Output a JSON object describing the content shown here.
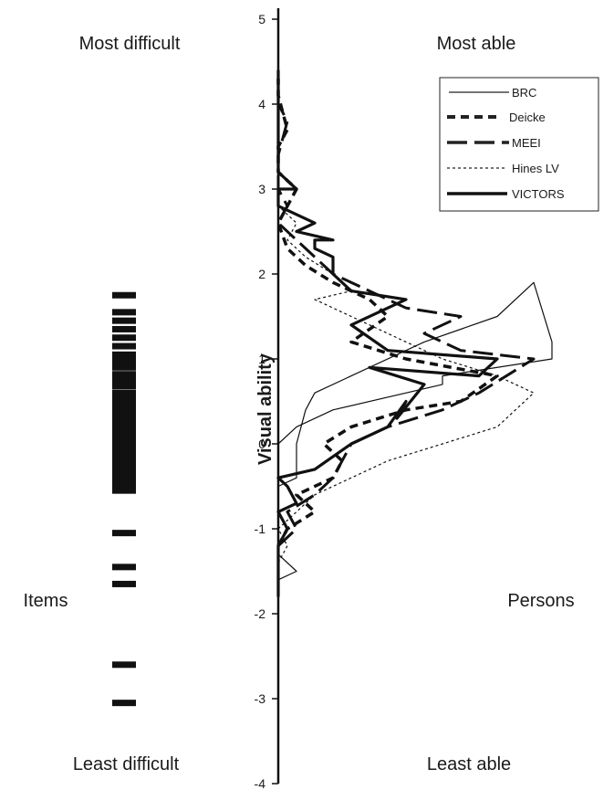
{
  "chart_data": {
    "type": "line",
    "ylabel": "Visual ability",
    "ylim": [
      -4,
      5
    ],
    "yticks": [
      "5",
      "4",
      "3",
      "2",
      "1",
      "0",
      "-1",
      "-2",
      "-3",
      "-4"
    ],
    "grid": false,
    "legend_position": "top-right",
    "corner_labels": {
      "top_left": "Most difficult",
      "top_right": "Most able",
      "bottom_left": "Least difficult",
      "bottom_right": "Least able"
    },
    "side_labels": {
      "left": "Items",
      "right": "Persons"
    },
    "item_locations": [
      1.75,
      1.55,
      1.45,
      1.35,
      1.25,
      1.15,
      1.05,
      1.0,
      0.95,
      0.9,
      0.82,
      0.75,
      0.68,
      0.6,
      0.55,
      0.5,
      0.45,
      0.4,
      0.35,
      0.3,
      0.25,
      0.2,
      0.15,
      0.1,
      0.05,
      0.0,
      -0.05,
      -0.1,
      -0.15,
      -0.2,
      -0.25,
      -0.3,
      -0.35,
      -0.4,
      -0.45,
      -0.5,
      -0.55,
      -1.05,
      -1.45,
      -1.65,
      -2.6,
      -3.05
    ],
    "series": [
      {
        "name": "BRC",
        "style": "thin-solid",
        "x": [
          0,
          0,
          2,
          0,
          0,
          0,
          2,
          2,
          2,
          3,
          4,
          8,
          16,
          24,
          28,
          30,
          30,
          18,
          18,
          6,
          2,
          0,
          0,
          0,
          0
        ],
        "y": [
          -1.9,
          -1.6,
          -1.5,
          -1.3,
          -1.0,
          -0.5,
          -0.4,
          -0.2,
          0.0,
          0.4,
          0.6,
          0.8,
          1.2,
          1.5,
          1.9,
          1.2,
          1.0,
          0.8,
          0.7,
          0.4,
          0.2,
          0.0,
          -0.2,
          -0.4,
          -0.5
        ]
      },
      {
        "name": "Deicke",
        "style": "thick-dashed",
        "x": [
          0,
          1,
          4,
          2,
          6,
          7,
          5,
          8,
          14,
          20,
          24,
          14,
          8,
          12,
          10,
          6,
          3,
          1,
          0,
          2,
          0,
          0,
          1,
          0,
          0
        ],
        "y": [
          -1.2,
          -1.0,
          -0.8,
          -0.6,
          -0.4,
          -0.2,
          0.0,
          0.2,
          0.4,
          0.5,
          0.8,
          1.0,
          1.2,
          1.5,
          1.7,
          1.9,
          2.1,
          2.3,
          2.6,
          3.0,
          3.2,
          3.5,
          3.7,
          4.1,
          4.3
        ]
      },
      {
        "name": "MEEI",
        "style": "long-dashed",
        "x": [
          0,
          2,
          1,
          4,
          6,
          8,
          12,
          18,
          22,
          28,
          20,
          16,
          20,
          14,
          10,
          6,
          4,
          2,
          0,
          1,
          0,
          0,
          1,
          0,
          0
        ],
        "y": [
          -1.2,
          -1.0,
          -0.8,
          -0.6,
          -0.4,
          0.0,
          0.2,
          0.4,
          0.6,
          1.0,
          1.1,
          1.3,
          1.5,
          1.6,
          1.8,
          2.0,
          2.2,
          2.4,
          2.6,
          2.8,
          3.0,
          3.4,
          3.8,
          4.0,
          4.2
        ]
      },
      {
        "name": "Hines LV",
        "style": "thin-dotted",
        "x": [
          0,
          1,
          0,
          2,
          4,
          8,
          12,
          18,
          24,
          28,
          24,
          18,
          14,
          8,
          4,
          8,
          6,
          3,
          2,
          1,
          2,
          0
        ],
        "y": [
          -1.4,
          -1.2,
          -1.0,
          -0.8,
          -0.6,
          -0.4,
          -0.2,
          0.0,
          0.2,
          0.6,
          0.8,
          1.0,
          1.2,
          1.5,
          1.7,
          1.8,
          2.0,
          2.2,
          2.3,
          2.4,
          2.6,
          2.8
        ]
      },
      {
        "name": "VICTORS",
        "style": "thick-solid",
        "x": [
          0,
          0,
          1,
          0,
          2,
          1,
          0,
          4,
          8,
          12,
          14,
          13,
          16,
          10,
          22,
          24,
          12,
          8,
          14,
          8,
          6,
          6,
          4,
          4,
          6,
          2,
          4,
          0,
          0,
          2,
          0,
          0,
          0
        ],
        "y": [
          -1.8,
          -1.2,
          -1.0,
          -0.8,
          -0.7,
          -0.5,
          -0.4,
          -0.3,
          0.0,
          0.2,
          0.5,
          0.3,
          0.7,
          0.9,
          0.8,
          1.0,
          1.1,
          1.4,
          1.7,
          1.8,
          2.0,
          2.2,
          2.3,
          2.4,
          2.4,
          2.5,
          2.6,
          2.8,
          3.0,
          3.0,
          3.2,
          3.9,
          4.4
        ]
      }
    ]
  }
}
